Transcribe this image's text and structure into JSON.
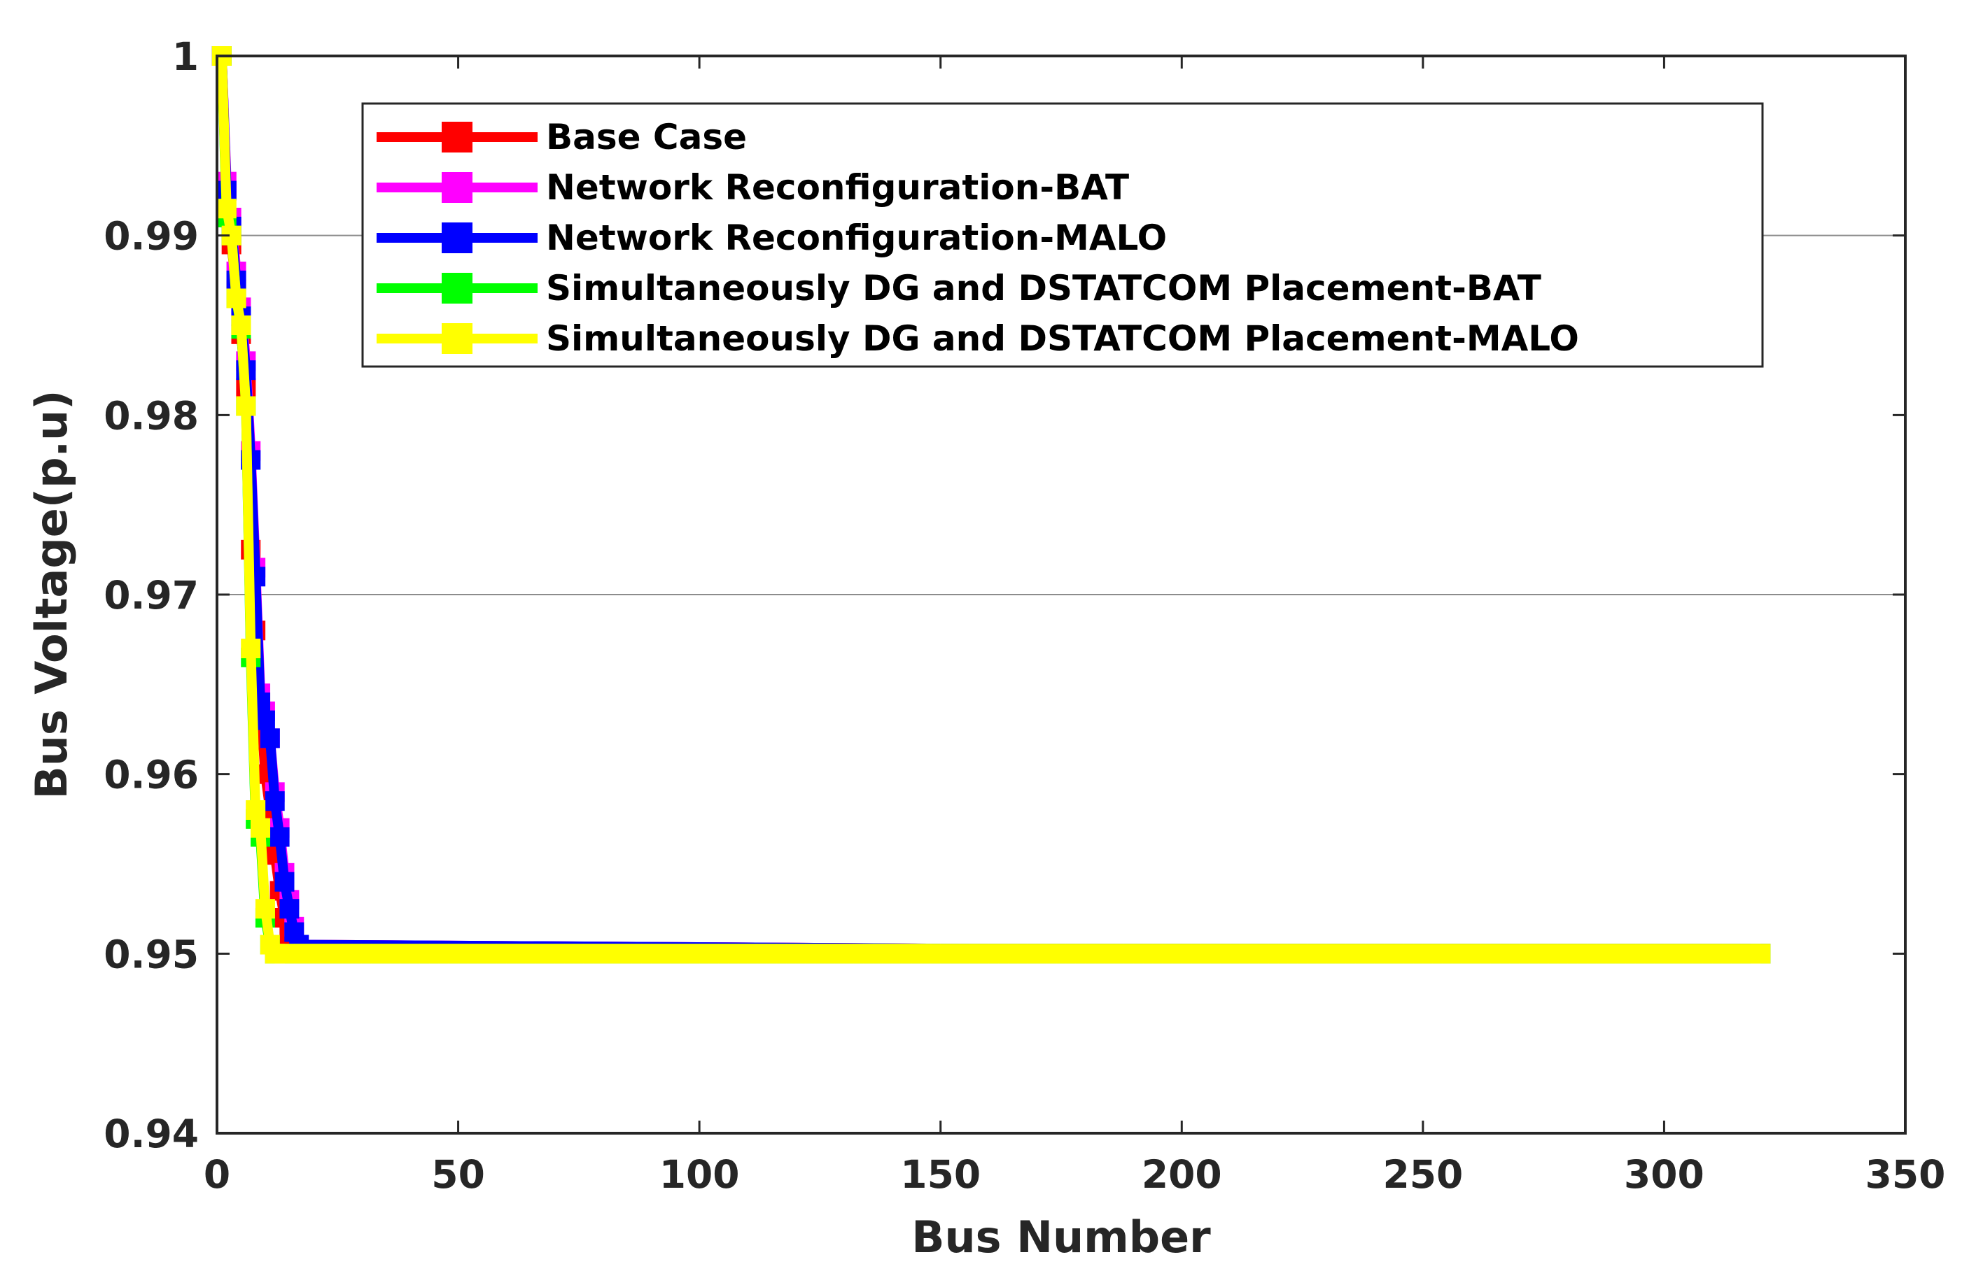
{
  "chart_data": {
    "type": "line",
    "title": "",
    "xlabel": "Bus Number",
    "ylabel": "Bus Voltage(p.u)",
    "xlim": [
      0,
      350
    ],
    "ylim": [
      0.94,
      1.0
    ],
    "xticks": [
      0,
      50,
      100,
      150,
      200,
      250,
      300,
      350
    ],
    "yticks": [
      0.94,
      0.95,
      0.96,
      0.97,
      0.98,
      0.99,
      1
    ],
    "xtick_labels": [
      "0",
      "50",
      "100",
      "150",
      "200",
      "250",
      "300",
      "350"
    ],
    "ytick_labels": [
      "0.94",
      "0.95",
      "0.96",
      "0.97",
      "0.98",
      "0.99",
      "1"
    ],
    "grid": "horizontal lines at 0.97 and 0.99",
    "legend_position": "top-center",
    "series": [
      {
        "name": "Base Case",
        "color": "#ff0000",
        "x": [
          1,
          2,
          3,
          4,
          5,
          6,
          7,
          8,
          9,
          10,
          11,
          12,
          13,
          14,
          15,
          16,
          320
        ],
        "y": [
          1.0,
          0.9925,
          0.9895,
          0.987,
          0.9845,
          0.9815,
          0.9725,
          0.968,
          0.964,
          0.96,
          0.958,
          0.9555,
          0.9535,
          0.952,
          0.951,
          0.9505,
          0.95
        ]
      },
      {
        "name": "Network Reconfiguration-BAT",
        "color": "#ff00ff",
        "x": [
          1,
          2,
          3,
          4,
          5,
          6,
          7,
          8,
          9,
          10,
          11,
          12,
          13,
          14,
          15,
          16,
          17,
          320
        ],
        "y": [
          1.0,
          0.993,
          0.991,
          0.988,
          0.986,
          0.983,
          0.978,
          0.9715,
          0.9645,
          0.9635,
          0.962,
          0.959,
          0.957,
          0.9545,
          0.953,
          0.9515,
          0.9505,
          0.95
        ]
      },
      {
        "name": "Network Reconfiguration-MALO",
        "color": "#0000ff",
        "x": [
          1,
          2,
          3,
          4,
          5,
          6,
          7,
          8,
          9,
          10,
          11,
          12,
          13,
          14,
          15,
          16,
          17,
          320
        ],
        "y": [
          1.0,
          0.9925,
          0.9905,
          0.9875,
          0.9855,
          0.9825,
          0.9775,
          0.971,
          0.964,
          0.963,
          0.962,
          0.9585,
          0.9565,
          0.954,
          0.9525,
          0.9512,
          0.9505,
          0.95
        ]
      },
      {
        "name": "Simultaneously DG and DSTATCOM Placement-BAT",
        "color": "#00ff00",
        "x": [
          1,
          2,
          3,
          4,
          5,
          6,
          7,
          8,
          9,
          10,
          11,
          12,
          320
        ],
        "y": [
          1.0,
          0.991,
          0.99,
          0.9865,
          0.9848,
          0.9805,
          0.9665,
          0.9575,
          0.9565,
          0.952,
          0.9505,
          0.95,
          0.95
        ]
      },
      {
        "name": "Simultaneously DG and DSTATCOM Placement-MALO",
        "color": "#ffff00",
        "x": [
          1,
          2,
          3,
          4,
          5,
          6,
          7,
          8,
          9,
          10,
          11,
          12,
          320
        ],
        "y": [
          1.0,
          0.9915,
          0.99,
          0.9865,
          0.985,
          0.9805,
          0.967,
          0.958,
          0.957,
          0.9525,
          0.9505,
          0.95,
          0.95
        ]
      }
    ]
  }
}
